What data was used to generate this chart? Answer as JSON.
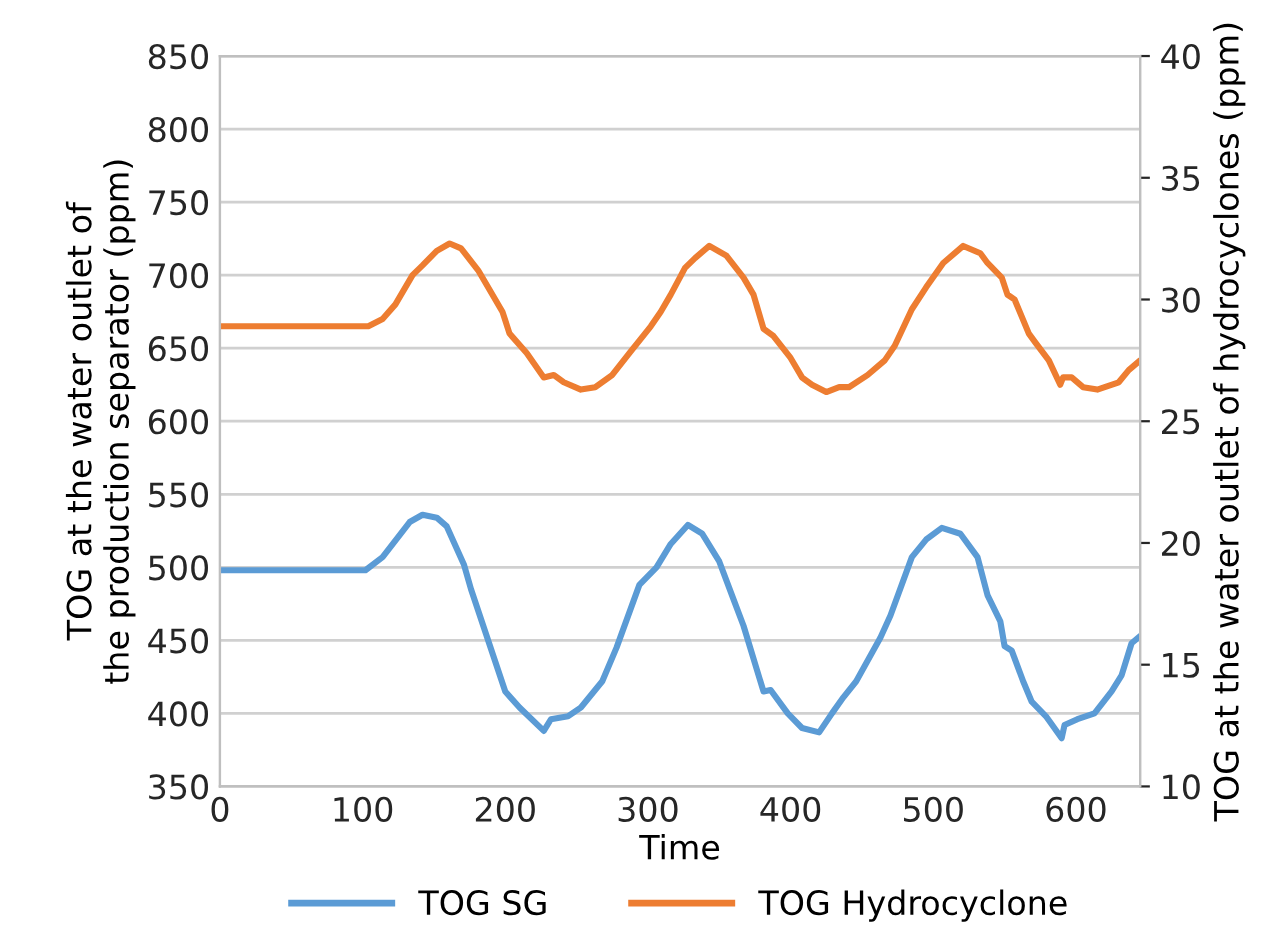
{
  "chart_data": {
    "type": "line",
    "xlabel": "Time",
    "ylabel": "TOG at the water outlet of the production separator (ppm)",
    "y2label": "TOG at the water outlet of hydrocyclones (ppm)",
    "xlim": [
      0,
      645
    ],
    "xticks": [
      0,
      100,
      200,
      300,
      400,
      500,
      600
    ],
    "ylim": [
      350,
      850
    ],
    "yticks": [
      350,
      400,
      450,
      500,
      550,
      600,
      650,
      700,
      750,
      800,
      850
    ],
    "y2lim": [
      10,
      40
    ],
    "y2ticks": [
      10,
      15,
      20,
      25,
      30,
      35,
      40
    ],
    "grid": "y",
    "legend": "bottom",
    "marker": "none",
    "line_style": "solid",
    "series": [
      {
        "name": "TOG SG",
        "color": "#5b9bd5",
        "x": [
          0,
          102,
          114,
          133,
          142,
          152,
          159,
          171,
          176,
          200,
          210,
          227,
          232,
          244,
          253,
          268,
          278,
          294,
          306,
          316,
          328,
          338,
          350,
          360,
          367,
          381,
          386,
          398,
          408,
          420,
          429,
          437,
          446,
          463,
          470,
          485,
          495,
          506,
          519,
          531,
          538,
          547,
          550,
          555,
          563,
          569,
          579,
          590,
          592,
          601,
          613,
          625,
          632,
          639,
          645
        ],
        "values": [
          498,
          498,
          507,
          531,
          536,
          534,
          528,
          502,
          485,
          415,
          404,
          388,
          396,
          398,
          404,
          422,
          445,
          488,
          500,
          516,
          529,
          523,
          504,
          478,
          460,
          415,
          416,
          400,
          390,
          387,
          400,
          411,
          422,
          452,
          467,
          507,
          519,
          527,
          523,
          507,
          481,
          463,
          446,
          443,
          422,
          408,
          398,
          383,
          392,
          396,
          400,
          415,
          426,
          448,
          453
        ]
      },
      {
        "name": "TOG Hydrocyclone",
        "color": "#ed7d31",
        "axis": "y2",
        "x": [
          0,
          104,
          114,
          123,
          135,
          142,
          152,
          161,
          169,
          181,
          198,
          203,
          215,
          227,
          234,
          241,
          253,
          263,
          275,
          287,
          302,
          309,
          316,
          326,
          333,
          343,
          355,
          367,
          374,
          381,
          388,
          400,
          408,
          415,
          425,
          434,
          441,
          454,
          466,
          473,
          485,
          495,
          507,
          521,
          533,
          538,
          548,
          552,
          557,
          567,
          572,
          581,
          589,
          591,
          597,
          605,
          615,
          630,
          637,
          645
        ],
        "values": [
          28.9,
          28.9,
          29.2,
          29.8,
          31.0,
          31.4,
          32.0,
          32.3,
          32.1,
          31.2,
          29.5,
          28.6,
          27.8,
          26.8,
          26.9,
          26.6,
          26.3,
          26.4,
          26.9,
          27.8,
          28.9,
          29.5,
          30.2,
          31.3,
          31.7,
          32.2,
          31.8,
          30.9,
          30.2,
          28.8,
          28.5,
          27.6,
          26.8,
          26.5,
          26.2,
          26.4,
          26.4,
          26.9,
          27.5,
          28.1,
          29.6,
          30.5,
          31.5,
          32.2,
          31.9,
          31.5,
          30.9,
          30.2,
          30.0,
          28.6,
          28.2,
          27.5,
          26.5,
          26.8,
          26.8,
          26.4,
          26.3,
          26.6,
          27.1,
          27.5
        ]
      }
    ]
  }
}
